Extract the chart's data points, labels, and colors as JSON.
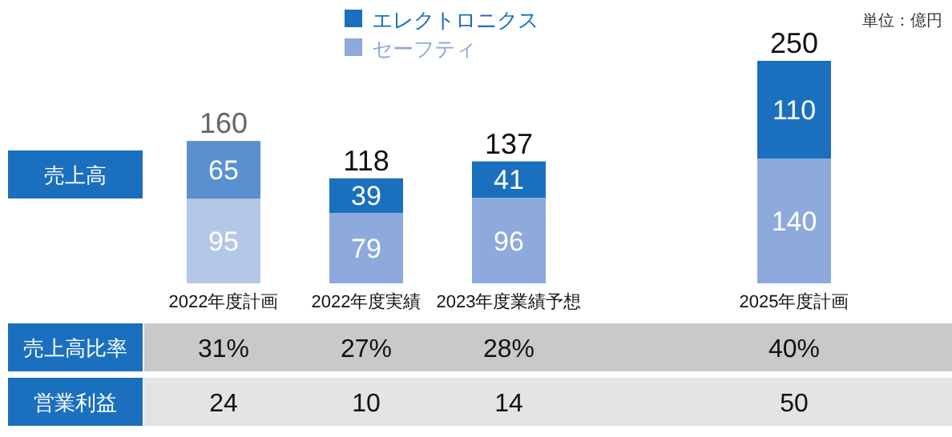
{
  "chart_data": {
    "type": "bar",
    "stacked": true,
    "ylabel": "売上高",
    "categories": [
      "2022年度計画",
      "2022年度実績",
      "2023年度業績予想",
      null,
      "2025年度計画"
    ],
    "series": [
      {
        "name": "セーフティ",
        "color": "#8eaadc",
        "colors": [
          "#b4c7e7",
          "#8eaadc",
          "#8eaadc",
          null,
          "#8eaadc"
        ],
        "values": [
          95,
          79,
          96,
          null,
          140
        ]
      },
      {
        "name": "エレクトロニクス",
        "color": "#1b6fbf",
        "colors": [
          "#5a8fd0",
          "#1b6fbf",
          "#1b6fbf",
          null,
          "#1b6fbf"
        ],
        "values": [
          65,
          39,
          41,
          null,
          110
        ]
      }
    ],
    "ylim": [
      0,
      250
    ],
    "data_labels": true,
    "totals": [
      "160",
      "118",
      "137",
      null,
      "250"
    ],
    "legend": "top",
    "annotations": [
      "単位：億円",
      "売上高比率",
      "31%",
      "27%",
      "28%",
      "40%",
      "営業利益",
      "24",
      "10",
      "14",
      "50"
    ]
  }
}
